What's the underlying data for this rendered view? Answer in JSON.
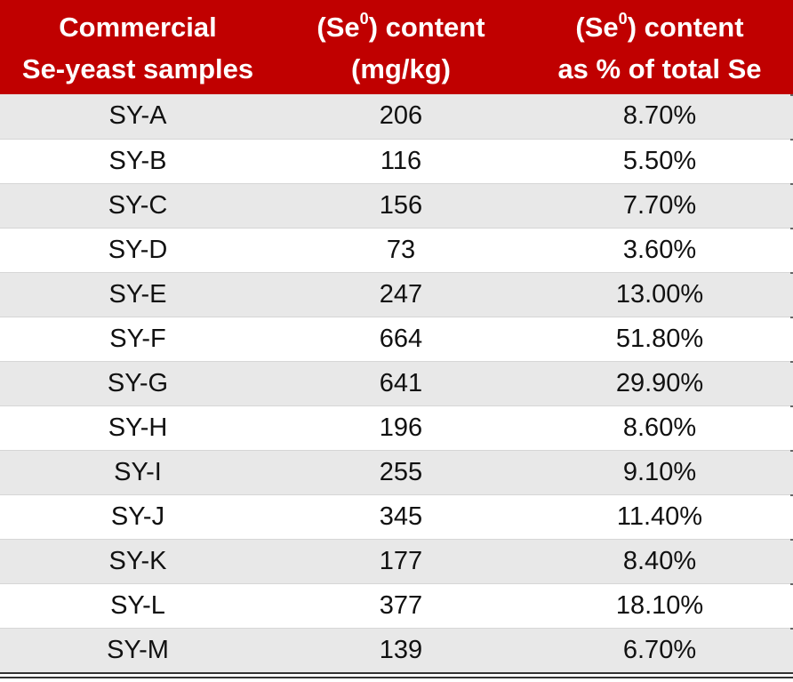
{
  "table": {
    "headers": {
      "col1": {
        "line1": "Commercial",
        "line2": "Se-yeast  samples"
      },
      "col2": {
        "line1_pre": "(Se",
        "line1_sup": "0",
        "line1_post": ") content",
        "line2": "(mg/kg)"
      },
      "col3": {
        "line1_pre": "(Se",
        "line1_sup": "0",
        "line1_post": ") content",
        "line2": "as % of total Se"
      }
    },
    "rows": [
      {
        "sample": "SY-A",
        "content": "206",
        "percent": "8.70%"
      },
      {
        "sample": "SY-B",
        "content": "116",
        "percent": "5.50%"
      },
      {
        "sample": "SY-C",
        "content": "156",
        "percent": "7.70%"
      },
      {
        "sample": "SY-D",
        "content": "73",
        "percent": "3.60%"
      },
      {
        "sample": "SY-E",
        "content": "247",
        "percent": "13.00%"
      },
      {
        "sample": "SY-F",
        "content": "664",
        "percent": "51.80%"
      },
      {
        "sample": "SY-G",
        "content": "641",
        "percent": "29.90%"
      },
      {
        "sample": "SY-H",
        "content": "196",
        "percent": "8.60%"
      },
      {
        "sample": "SY-I",
        "content": "255",
        "percent": "9.10%"
      },
      {
        "sample": "SY-J",
        "content": "345",
        "percent": "11.40%"
      },
      {
        "sample": "SY-K",
        "content": "177",
        "percent": "8.40%"
      },
      {
        "sample": "SY-L",
        "content": "377",
        "percent": "18.10%"
      },
      {
        "sample": "SY-M",
        "content": "139",
        "percent": "6.70%"
      }
    ]
  },
  "colors": {
    "header_bg": "#c00000",
    "header_text": "#ffffff",
    "stripe_bg": "#e8e8e8"
  }
}
